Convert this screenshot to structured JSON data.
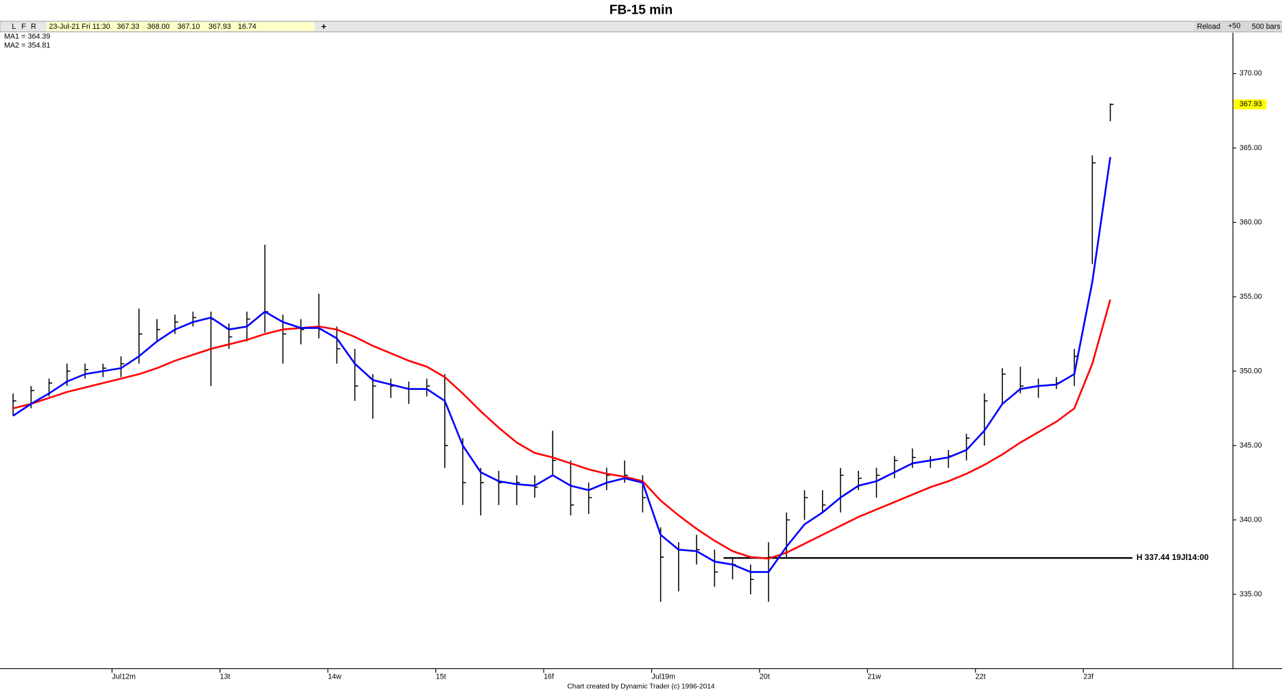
{
  "chart_data": {
    "type": "ohlc",
    "title": "FB-15 min",
    "toolbar": {
      "buttons": [
        "L",
        "F",
        "R"
      ],
      "info": [
        "23-Jul-21 Fri 11:30",
        "367.33",
        "368.00",
        "367.10",
        "367.93",
        "16.74"
      ],
      "add": "+",
      "reload": "Reload",
      "step": "+50",
      "bars": "500 bars"
    },
    "footer": "Chart created by Dynamic Trader  (c) 1996-2014",
    "categories": [
      null,
      null,
      null,
      null,
      null,
      null,
      "Jul12m",
      null,
      null,
      null,
      null,
      null,
      "13t",
      null,
      null,
      null,
      null,
      null,
      "14w",
      null,
      null,
      null,
      null,
      null,
      "15t",
      null,
      null,
      null,
      null,
      null,
      "16f",
      null,
      null,
      null,
      null,
      null,
      "Jul19m",
      null,
      null,
      null,
      null,
      null,
      "20t",
      null,
      null,
      null,
      null,
      null,
      "21w",
      null,
      null,
      null,
      null,
      null,
      "22t",
      null,
      null,
      null,
      null,
      null,
      "23f",
      null
    ],
    "high": [
      348.5,
      349,
      349.5,
      350.5,
      350.5,
      350.5,
      351,
      354.2,
      353.5,
      353.8,
      354,
      354,
      353.2,
      354,
      358.5,
      353.8,
      353.5,
      355.2,
      353,
      351.5,
      349.8,
      349.5,
      349.3,
      349.5,
      349.8,
      345.5,
      343.5,
      343.3,
      343,
      343,
      346,
      344,
      342.5,
      343.5,
      344,
      343,
      339.5,
      338.5,
      339,
      338,
      337.5,
      337,
      338.5,
      340.5,
      342,
      342,
      343.5,
      343.3,
      343.5,
      344.3,
      344.8,
      344.3,
      344.7,
      345.8,
      348.5,
      350.2,
      350.3,
      349.5,
      349.6,
      351.5,
      364.5,
      368
    ],
    "low": [
      347,
      347.5,
      348.3,
      349,
      349.5,
      349.6,
      349.6,
      350.5,
      352,
      352.5,
      353,
      349,
      351.5,
      352,
      352.6,
      350.5,
      351.8,
      352.2,
      350.5,
      348,
      346.8,
      348.2,
      347.8,
      348.3,
      343.5,
      341,
      340.3,
      341,
      341,
      341.5,
      343,
      340.3,
      340.4,
      342,
      342.5,
      340.5,
      334.5,
      335.2,
      337,
      335.5,
      336,
      335,
      334.5,
      337.5,
      340,
      340.5,
      340.5,
      342,
      341.5,
      342.8,
      343.5,
      343.5,
      343.5,
      344,
      345,
      347.8,
      348.5,
      348.2,
      348.8,
      349,
      357.2,
      366.8
    ],
    "close": [
      348,
      348.7,
      349.2,
      350,
      350.1,
      350.2,
      350.5,
      352.5,
      352.8,
      353.3,
      353.6,
      353.5,
      352.3,
      353.5,
      354,
      352.5,
      352.8,
      352.8,
      351.5,
      349,
      349,
      349,
      348.8,
      349,
      345,
      342.5,
      342.5,
      342.5,
      342.5,
      342.2,
      344,
      341,
      341.5,
      343,
      343,
      341.5,
      337.5,
      338,
      338,
      336.5,
      337,
      336,
      337.5,
      340,
      341.5,
      341,
      343,
      342.8,
      343,
      344,
      344.2,
      344,
      344.3,
      345.5,
      348,
      349.8,
      349,
      349,
      349.2,
      351,
      364,
      367.93
    ],
    "bar_color": "#000000",
    "series": [
      {
        "label": "MA1 =",
        "last": 364.39,
        "color": "#0000ff",
        "values": [
          347,
          347.8,
          348.5,
          349.3,
          349.8,
          350,
          350.2,
          351,
          352,
          352.8,
          353.3,
          353.6,
          352.8,
          353,
          354,
          353.3,
          352.9,
          352.9,
          352.2,
          350.5,
          349.4,
          349.1,
          348.8,
          348.8,
          348,
          345,
          343.2,
          342.6,
          342.4,
          342.3,
          343,
          342.3,
          342,
          342.5,
          342.8,
          342.5,
          339,
          338,
          337.9,
          337.2,
          337,
          336.5,
          336.5,
          338.2,
          339.7,
          340.5,
          341.5,
          342.3,
          342.6,
          343.2,
          343.8,
          344,
          344.2,
          344.7,
          346,
          347.8,
          348.8,
          349,
          349.1,
          349.8,
          356,
          364.39
        ]
      },
      {
        "label": "MA2 =",
        "last": 354.81,
        "color": "#ff0000",
        "values": [
          347.5,
          347.8,
          348.2,
          348.6,
          348.9,
          349.2,
          349.5,
          349.8,
          350.2,
          350.7,
          351.1,
          351.5,
          351.8,
          352.1,
          352.5,
          352.8,
          352.9,
          353,
          352.8,
          352.3,
          351.7,
          351.2,
          350.7,
          350.3,
          349.6,
          348.5,
          347.3,
          346.2,
          345.2,
          344.5,
          344.2,
          343.8,
          343.4,
          343.1,
          342.9,
          342.6,
          341.3,
          340.3,
          339.4,
          338.6,
          337.9,
          337.5,
          337.4,
          337.8,
          338.4,
          339,
          339.6,
          340.2,
          340.7,
          341.2,
          341.7,
          342.2,
          342.6,
          343.1,
          343.7,
          344.4,
          345.2,
          345.9,
          346.6,
          347.5,
          350.5,
          354.81
        ]
      }
    ],
    "last_close": 367.93,
    "level": {
      "value": 337.44,
      "label": "H 337.44 19Jl14:00"
    },
    "ylim": [
      330,
      372.75
    ],
    "yticks": [
      {
        "value": 335,
        "label": "335.00"
      },
      {
        "value": 340,
        "label": "340.00"
      },
      {
        "value": 345,
        "label": "345.00"
      },
      {
        "value": 350,
        "label": "350.00"
      },
      {
        "value": 355,
        "label": "355.00"
      },
      {
        "value": 360,
        "label": "360.00"
      },
      {
        "value": 365,
        "label": "365.00"
      },
      {
        "value": 370,
        "label": "370.00"
      }
    ]
  }
}
